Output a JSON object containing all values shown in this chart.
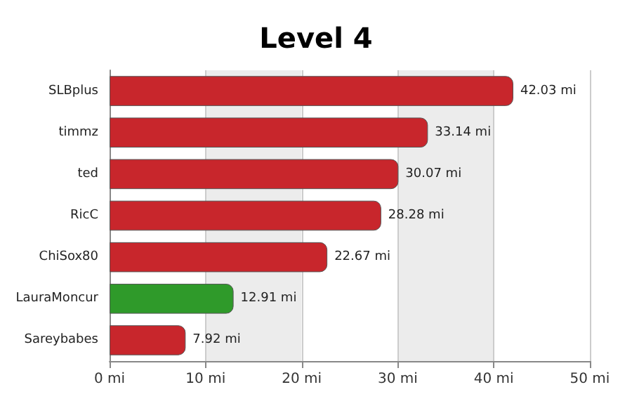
{
  "chart_data": {
    "type": "bar",
    "title": "Level 4",
    "orientation": "horizontal",
    "categories": [
      "SLBplus",
      "timmz",
      "ted",
      "RicC",
      "ChiSox80",
      "LauraMoncur",
      "Sareybabes"
    ],
    "values": [
      42.03,
      33.14,
      30.07,
      28.28,
      22.67,
      12.91,
      7.92
    ],
    "value_labels": [
      "42.03 mi",
      "33.14 mi",
      "30.07 mi",
      "28.28 mi",
      "22.67 mi",
      "12.91 mi",
      "7.92 mi"
    ],
    "colors": [
      "#c8262c",
      "#c8262c",
      "#c8262c",
      "#c8262c",
      "#c8262c",
      "#2f9a2a",
      "#c8262c"
    ],
    "xlim": [
      0,
      50
    ],
    "xticks": [
      {
        "value": 0,
        "label": "0 mi"
      },
      {
        "value": 10,
        "label": "10 mi"
      },
      {
        "value": 20,
        "label": "20 mi"
      },
      {
        "value": 30,
        "label": "30 mi"
      },
      {
        "value": 40,
        "label": "40 mi"
      },
      {
        "value": 50,
        "label": "50 mi"
      }
    ],
    "grid": "x"
  }
}
